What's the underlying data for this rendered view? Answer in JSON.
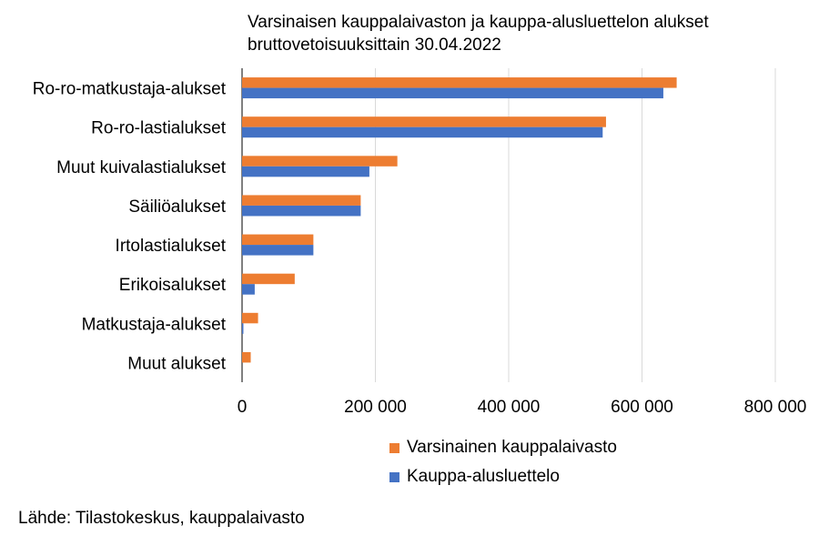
{
  "chart_data": {
    "type": "bar",
    "orientation": "horizontal",
    "title_lines": [
      "Varsinaisen kauppalaivaston ja kauppa-alusluettelon alukset",
      "bruttovetoisuuksittain 30.04.2022"
    ],
    "categories": [
      "Ro-ro-matkustaja-alukset",
      "Ro-ro-lastialukset",
      "Muut kuivalastialukset",
      "Säiliöalukset",
      "Irtolastialukset",
      "Erikoisalukset",
      "Matkustaja-alukset",
      "Muut alukset"
    ],
    "series": [
      {
        "name": "Varsinainen kauppalaivasto",
        "color": "#ED7D31",
        "values": [
          652000,
          546000,
          233000,
          178000,
          107000,
          79000,
          24000,
          13000
        ]
      },
      {
        "name": "Kauppa-alusluettelo",
        "color": "#4472C4",
        "values": [
          632000,
          541000,
          191000,
          178000,
          107000,
          19000,
          2000,
          0
        ]
      }
    ],
    "xlim": [
      0,
      800000
    ],
    "xticks": [
      0,
      200000,
      400000,
      600000,
      800000
    ],
    "xtick_labels": [
      "0",
      "200 000",
      "400 000",
      "600 000",
      "800 000"
    ],
    "grid": true,
    "legend_position": "bottom"
  },
  "source": "Lähde: Tilastokeskus, kauppalaivasto"
}
